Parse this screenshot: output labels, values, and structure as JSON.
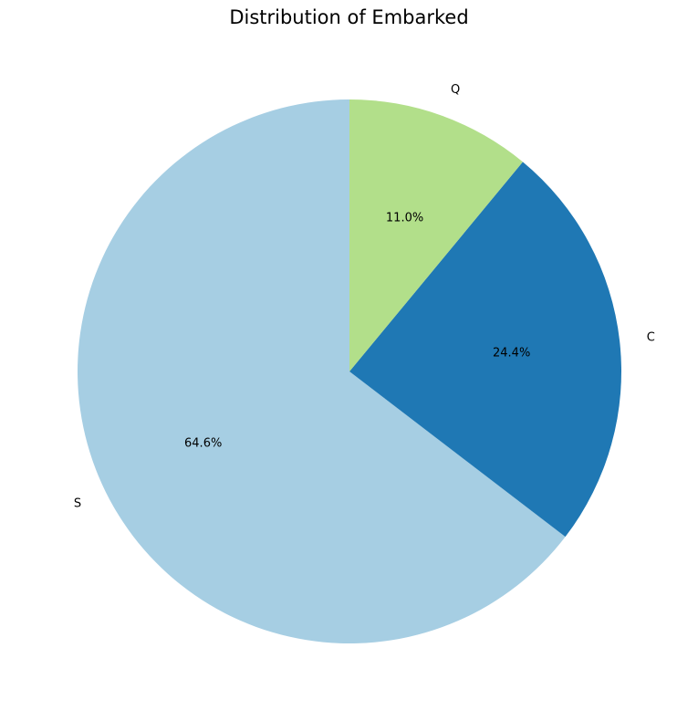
{
  "chart_data": {
    "type": "pie",
    "title": "Distribution of Embarked",
    "slices": [
      {
        "label": "S",
        "value": 64.6,
        "pct_label": "64.6%",
        "color": "#a6cee3"
      },
      {
        "label": "C",
        "value": 24.4,
        "pct_label": "24.4%",
        "color": "#1f78b4"
      },
      {
        "label": "Q",
        "value": 11.0,
        "pct_label": "11.0%",
        "color": "#b2df8a"
      }
    ],
    "start_angle_deg": 90,
    "direction": "counterclockwise"
  }
}
